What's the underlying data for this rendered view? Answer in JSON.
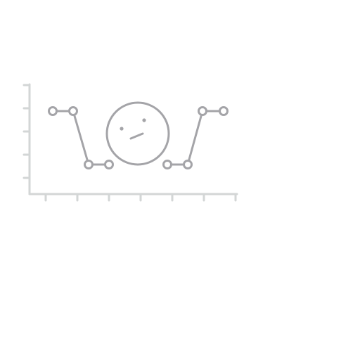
{
  "illustration": {
    "icon": "empty-chart-confused-face-icon",
    "axis_color": "#d3d6d6",
    "line_color": "#a4a4a8",
    "background": "#ffffff"
  }
}
